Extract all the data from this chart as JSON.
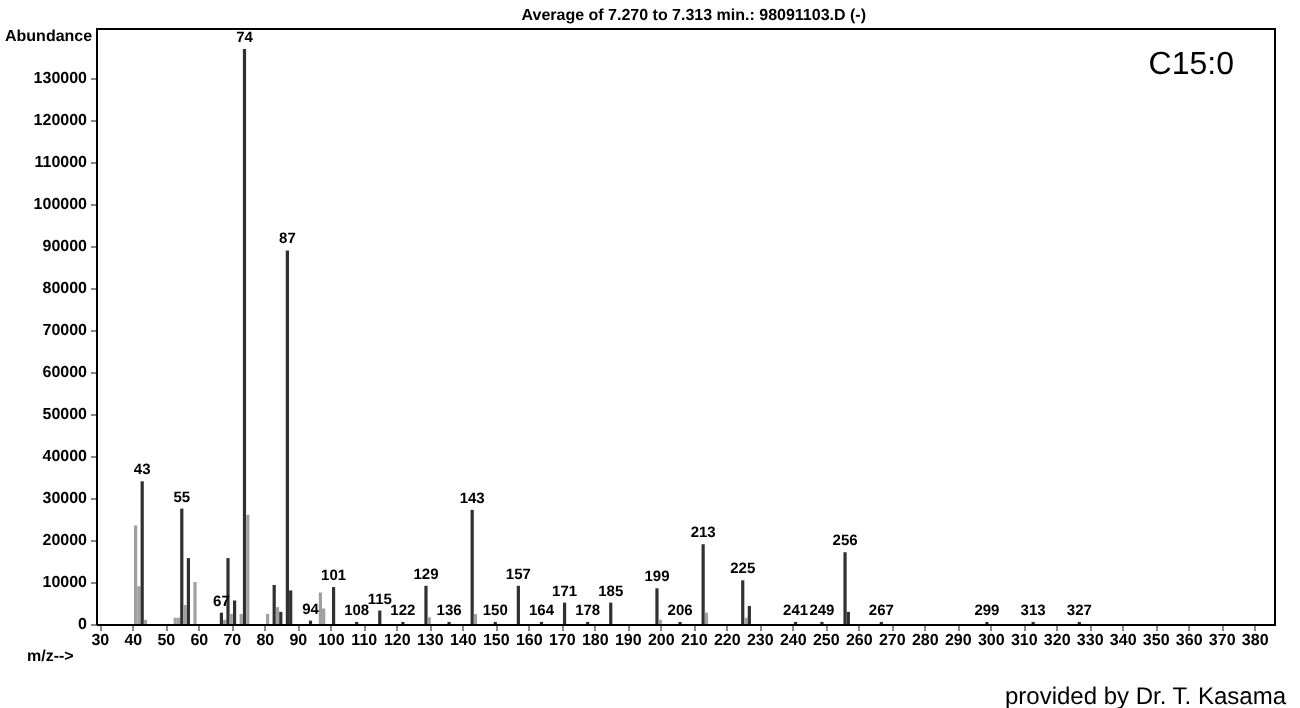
{
  "chart_data": {
    "type": "bar",
    "title": "Average of 7.270 to 7.313 min.: 98091103.D (-)",
    "xlabel": "m/z-->",
    "ylabel": "Abundance",
    "x": [
      41,
      42,
      43,
      44,
      53,
      54,
      55,
      56,
      57,
      59,
      67,
      68,
      69,
      70,
      71,
      73,
      74,
      75,
      81,
      83,
      84,
      85,
      87,
      88,
      94,
      97,
      98,
      101,
      108,
      115,
      122,
      129,
      130,
      136,
      143,
      144,
      150,
      157,
      164,
      171,
      178,
      185,
      199,
      200,
      206,
      213,
      214,
      225,
      226,
      227,
      241,
      249,
      256,
      257,
      267,
      299,
      313,
      327
    ],
    "values": [
      23500,
      9000,
      34000,
      1000,
      1500,
      1500,
      27500,
      4500,
      15700,
      10000,
      2700,
      1000,
      15700,
      2400,
      5600,
      2400,
      137000,
      26000,
      2400,
      9300,
      4000,
      2900,
      89000,
      8000,
      800,
      7500,
      3700,
      8800,
      500,
      3200,
      500,
      9100,
      1600,
      500,
      27200,
      2400,
      500,
      9100,
      500,
      5100,
      500,
      5100,
      8500,
      1000,
      500,
      19000,
      2700,
      10400,
      1500,
      4300,
      500,
      500,
      17100,
      2900,
      500,
      500,
      500,
      500
    ],
    "colors": [
      "#a0a0a0",
      "#a0a0a0",
      "#303030",
      "#a0a0a0",
      "#a0a0a0",
      "#a0a0a0",
      "#303030",
      "#a0a0a0",
      "#303030",
      "#a0a0a0",
      "#303030",
      "#a0a0a0",
      "#303030",
      "#a0a0a0",
      "#303030",
      "#a0a0a0",
      "#303030",
      "#a0a0a0",
      "#a0a0a0",
      "#303030",
      "#a0a0a0",
      "#303030",
      "#303030",
      "#303030",
      "#303030",
      "#a0a0a0",
      "#a0a0a0",
      "#303030",
      "#303030",
      "#303030",
      "#303030",
      "#303030",
      "#a0a0a0",
      "#303030",
      "#303030",
      "#a0a0a0",
      "#303030",
      "#303030",
      "#303030",
      "#303030",
      "#303030",
      "#303030",
      "#303030",
      "#a0a0a0",
      "#303030",
      "#303030",
      "#a0a0a0",
      "#303030",
      "#a0a0a0",
      "#303030",
      "#303030",
      "#303030",
      "#303030",
      "#303030",
      "#303030",
      "#303030",
      "#303030",
      "#303030"
    ],
    "xlim": [
      29,
      386
    ],
    "xticks": [
      30,
      40,
      50,
      60,
      70,
      80,
      90,
      100,
      110,
      120,
      130,
      140,
      150,
      160,
      170,
      180,
      190,
      200,
      210,
      220,
      230,
      240,
      250,
      260,
      270,
      280,
      290,
      300,
      310,
      320,
      330,
      340,
      350,
      360,
      370,
      380
    ],
    "ylim": [
      0,
      142000
    ],
    "yticks": [
      0,
      10000,
      20000,
      30000,
      40000,
      50000,
      60000,
      70000,
      80000,
      90000,
      100000,
      110000,
      120000,
      130000
    ],
    "annotations": [
      {
        "text": "43",
        "x": 43,
        "y": 34000
      },
      {
        "text": "55",
        "x": 55,
        "y": 27500
      },
      {
        "text": "67",
        "x": 67,
        "y": 2700
      },
      {
        "text": "74",
        "x": 74,
        "y": 137000
      },
      {
        "text": "87",
        "x": 87,
        "y": 89000
      },
      {
        "text": "94",
        "x": 94,
        "y": 800
      },
      {
        "text": "101",
        "x": 101,
        "y": 8800
      },
      {
        "text": "108",
        "x": 108,
        "y": 500
      },
      {
        "text": "115",
        "x": 115,
        "y": 3200
      },
      {
        "text": "122",
        "x": 122,
        "y": 500
      },
      {
        "text": "129",
        "x": 129,
        "y": 9100
      },
      {
        "text": "136",
        "x": 136,
        "y": 500
      },
      {
        "text": "143",
        "x": 143,
        "y": 27200
      },
      {
        "text": "150",
        "x": 150,
        "y": 500
      },
      {
        "text": "157",
        "x": 157,
        "y": 9100
      },
      {
        "text": "164",
        "x": 164,
        "y": 500
      },
      {
        "text": "171",
        "x": 171,
        "y": 5100
      },
      {
        "text": "178",
        "x": 178,
        "y": 500
      },
      {
        "text": "185",
        "x": 185,
        "y": 5100
      },
      {
        "text": "199",
        "x": 199,
        "y": 8500
      },
      {
        "text": "206",
        "x": 206,
        "y": 500
      },
      {
        "text": "213",
        "x": 213,
        "y": 19000
      },
      {
        "text": "225",
        "x": 225,
        "y": 10400
      },
      {
        "text": "241",
        "x": 241,
        "y": 500
      },
      {
        "text": "249",
        "x": 249,
        "y": 500
      },
      {
        "text": "256",
        "x": 256,
        "y": 17100
      },
      {
        "text": "267",
        "x": 267,
        "y": 500
      },
      {
        "text": "299",
        "x": 299,
        "y": 500
      },
      {
        "text": "313",
        "x": 313,
        "y": 500
      },
      {
        "text": "327",
        "x": 327,
        "y": 500
      },
      "C15:0",
      "provided by Dr. T. Kasama"
    ],
    "grid": false
  }
}
